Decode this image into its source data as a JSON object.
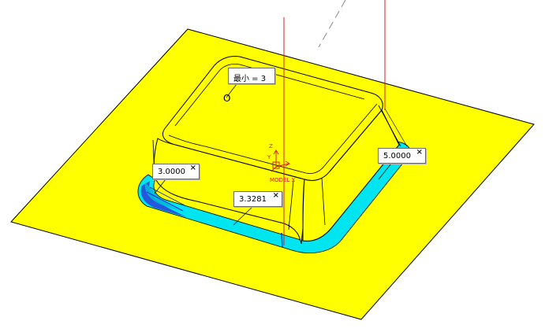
{
  "annotations": {
    "min_label": "最小 = 3",
    "origin_label": "O",
    "dim_left": "3.0000",
    "dim_center": "3.3281",
    "dim_right": "5.0000",
    "close_glyph": "×"
  },
  "triad": {
    "z_label": "Z",
    "y_label": "Y",
    "model_label": "MODEL X"
  },
  "colors": {
    "plane": "#ffff00",
    "fillet": "#00e5ef",
    "fillet_shade": "#1a2fd6",
    "axis_red": "#d42020",
    "outline": "#000000"
  }
}
